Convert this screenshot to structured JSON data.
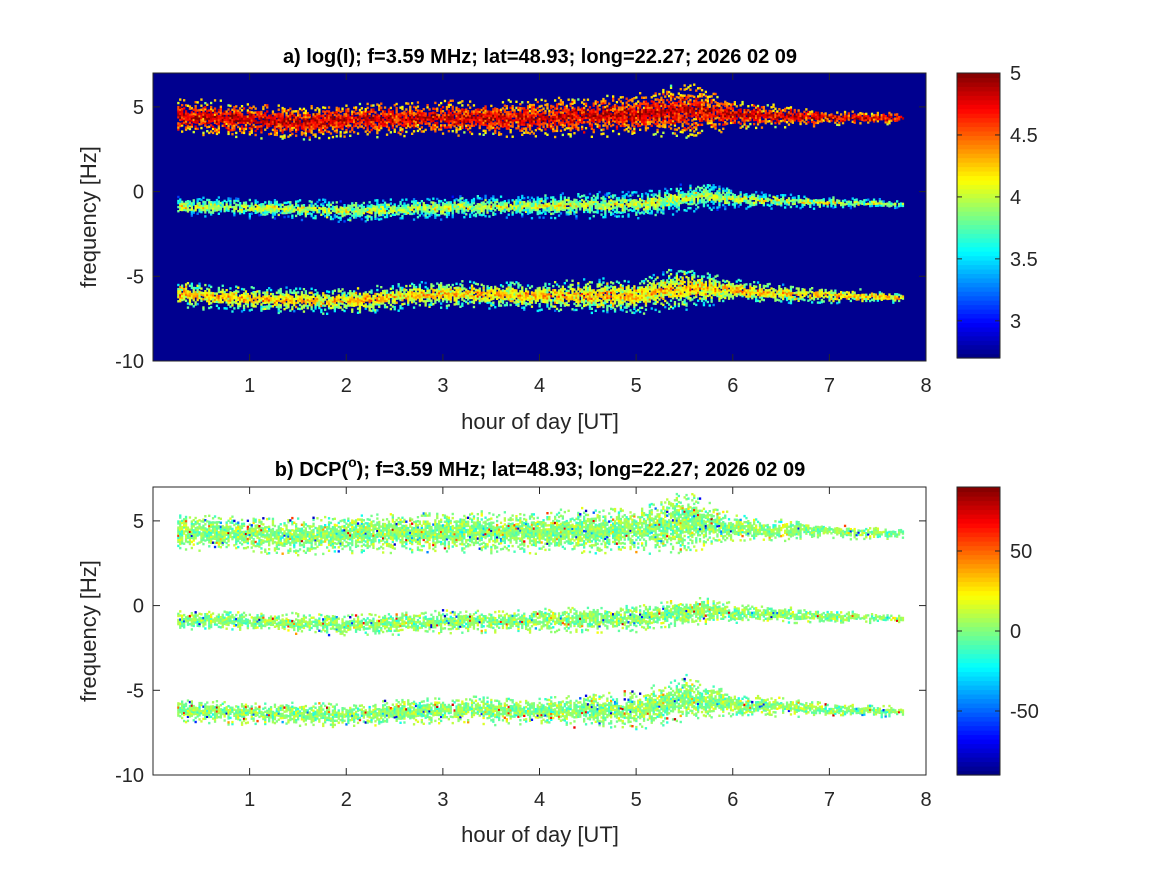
{
  "chart_data": [
    {
      "id": "a",
      "type": "heatmap",
      "title": "a) log(I); f=3.59 MHz;  lat=48.93; long=22.27; 2026 02 09",
      "xlabel": "hour of day [UT]",
      "ylabel": "frequency [Hz]",
      "xlim": [
        0,
        8
      ],
      "ylim": [
        -10,
        7
      ],
      "xticks": [
        1,
        2,
        3,
        4,
        5,
        6,
        7,
        8
      ],
      "yticks": [
        -10,
        -5,
        0,
        5
      ],
      "data_x_range": [
        0.25,
        7.75
      ],
      "clim": [
        2.7,
        5
      ],
      "colorbar_ticks": [
        3,
        3.5,
        4,
        4.5,
        5
      ],
      "colorbar_tick_labels": [
        "3",
        "3.5",
        "4",
        "4.5",
        "5"
      ],
      "colormap": "jet",
      "background_value": 2.7,
      "bands": [
        {
          "name": "upper",
          "center": [
            [
              0.25,
              4.4
            ],
            [
              1.0,
              4.2
            ],
            [
              1.5,
              4.0
            ],
            [
              2.0,
              4.2
            ],
            [
              3.0,
              4.3
            ],
            [
              4.0,
              4.3
            ],
            [
              5.0,
              4.5
            ],
            [
              5.5,
              4.8
            ],
            [
              6.0,
              4.5
            ],
            [
              7.0,
              4.3
            ],
            [
              7.75,
              4.3
            ]
          ],
          "halfwidth": [
            [
              0.25,
              0.75
            ],
            [
              2.0,
              0.7
            ],
            [
              4.0,
              0.8
            ],
            [
              5.0,
              0.9
            ],
            [
              5.5,
              1.2
            ],
            [
              6.0,
              0.6
            ],
            [
              7.0,
              0.3
            ],
            [
              7.75,
              0.2
            ]
          ],
          "level": 4.35
        },
        {
          "name": "middle",
          "center": [
            [
              0.25,
              -0.9
            ],
            [
              1.0,
              -1.0
            ],
            [
              2.0,
              -1.2
            ],
            [
              3.0,
              -1.0
            ],
            [
              4.0,
              -0.9
            ],
            [
              5.0,
              -0.8
            ],
            [
              5.7,
              -0.3
            ],
            [
              6.0,
              -0.5
            ],
            [
              7.0,
              -0.7
            ],
            [
              7.75,
              -0.8
            ]
          ],
          "halfwidth": [
            [
              0.25,
              0.4
            ],
            [
              2.0,
              0.45
            ],
            [
              4.0,
              0.5
            ],
            [
              5.0,
              0.6
            ],
            [
              5.7,
              0.6
            ],
            [
              6.0,
              0.4
            ],
            [
              7.0,
              0.25
            ],
            [
              7.75,
              0.15
            ]
          ],
          "level": 3.55
        },
        {
          "name": "lower",
          "center": [
            [
              0.25,
              -6.1
            ],
            [
              1.0,
              -6.4
            ],
            [
              2.0,
              -6.5
            ],
            [
              3.0,
              -6.1
            ],
            [
              4.0,
              -6.2
            ],
            [
              5.0,
              -6.2
            ],
            [
              5.5,
              -5.7
            ],
            [
              6.0,
              -5.9
            ],
            [
              7.0,
              -6.2
            ],
            [
              7.75,
              -6.3
            ]
          ],
          "halfwidth": [
            [
              0.25,
              0.55
            ],
            [
              2.0,
              0.55
            ],
            [
              4.0,
              0.6
            ],
            [
              5.0,
              0.8
            ],
            [
              5.5,
              0.9
            ],
            [
              6.0,
              0.5
            ],
            [
              7.0,
              0.3
            ],
            [
              7.75,
              0.2
            ]
          ],
          "level": 3.8
        }
      ]
    },
    {
      "id": "b",
      "type": "heatmap",
      "title_prefix": "b) DCP(",
      "title_superscript": "o",
      "title_suffix": "); f=3.59 MHz;  lat=48.93; long=22.27; 2026 02 09",
      "xlabel": "hour of day [UT]",
      "ylabel": "frequency [Hz]",
      "xlim": [
        0,
        8
      ],
      "ylim": [
        -10,
        7
      ],
      "xticks": [
        1,
        2,
        3,
        4,
        5,
        6,
        7,
        8
      ],
      "yticks": [
        -10,
        -5,
        0,
        5
      ],
      "data_x_range": [
        0.25,
        7.75
      ],
      "clim": [
        -90,
        90
      ],
      "colorbar_ticks": [
        -50,
        0,
        50
      ],
      "colorbar_tick_labels": [
        "-50",
        "0",
        "50"
      ],
      "colormap": "jet",
      "background_color": "#ffffff",
      "bands": [
        {
          "name": "upper",
          "center": [
            [
              0.25,
              4.3
            ],
            [
              1.0,
              4.2
            ],
            [
              1.5,
              4.0
            ],
            [
              2.0,
              4.2
            ],
            [
              3.0,
              4.3
            ],
            [
              4.0,
              4.3
            ],
            [
              5.0,
              4.4
            ],
            [
              5.5,
              4.9
            ],
            [
              6.0,
              4.5
            ],
            [
              7.0,
              4.3
            ],
            [
              7.75,
              4.2
            ]
          ],
          "halfwidth": [
            [
              0.25,
              0.75
            ],
            [
              2.0,
              0.8
            ],
            [
              4.0,
              0.9
            ],
            [
              5.0,
              1.0
            ],
            [
              5.5,
              1.3
            ],
            [
              6.0,
              0.6
            ],
            [
              7.0,
              0.3
            ],
            [
              7.75,
              0.2
            ]
          ],
          "level": 5
        },
        {
          "name": "middle",
          "center": [
            [
              0.25,
              -0.9
            ],
            [
              1.0,
              -1.0
            ],
            [
              2.0,
              -1.2
            ],
            [
              3.0,
              -1.0
            ],
            [
              4.0,
              -0.9
            ],
            [
              5.0,
              -0.8
            ],
            [
              5.7,
              -0.3
            ],
            [
              6.0,
              -0.5
            ],
            [
              7.0,
              -0.7
            ],
            [
              7.75,
              -0.8
            ]
          ],
          "halfwidth": [
            [
              0.25,
              0.4
            ],
            [
              2.0,
              0.45
            ],
            [
              4.0,
              0.5
            ],
            [
              5.0,
              0.6
            ],
            [
              5.7,
              0.6
            ],
            [
              6.0,
              0.4
            ],
            [
              7.0,
              0.25
            ],
            [
              7.75,
              0.15
            ]
          ],
          "level": 5
        },
        {
          "name": "lower",
          "center": [
            [
              0.25,
              -6.2
            ],
            [
              1.0,
              -6.4
            ],
            [
              2.0,
              -6.5
            ],
            [
              3.0,
              -6.2
            ],
            [
              4.0,
              -6.3
            ],
            [
              5.0,
              -6.2
            ],
            [
              5.5,
              -5.5
            ],
            [
              6.0,
              -5.9
            ],
            [
              7.0,
              -6.2
            ],
            [
              7.75,
              -6.3
            ]
          ],
          "halfwidth": [
            [
              0.25,
              0.5
            ],
            [
              2.0,
              0.5
            ],
            [
              4.0,
              0.6
            ],
            [
              5.0,
              0.8
            ],
            [
              5.5,
              1.0
            ],
            [
              6.0,
              0.5
            ],
            [
              7.0,
              0.3
            ],
            [
              7.75,
              0.2
            ]
          ],
          "level": 5
        }
      ]
    }
  ]
}
